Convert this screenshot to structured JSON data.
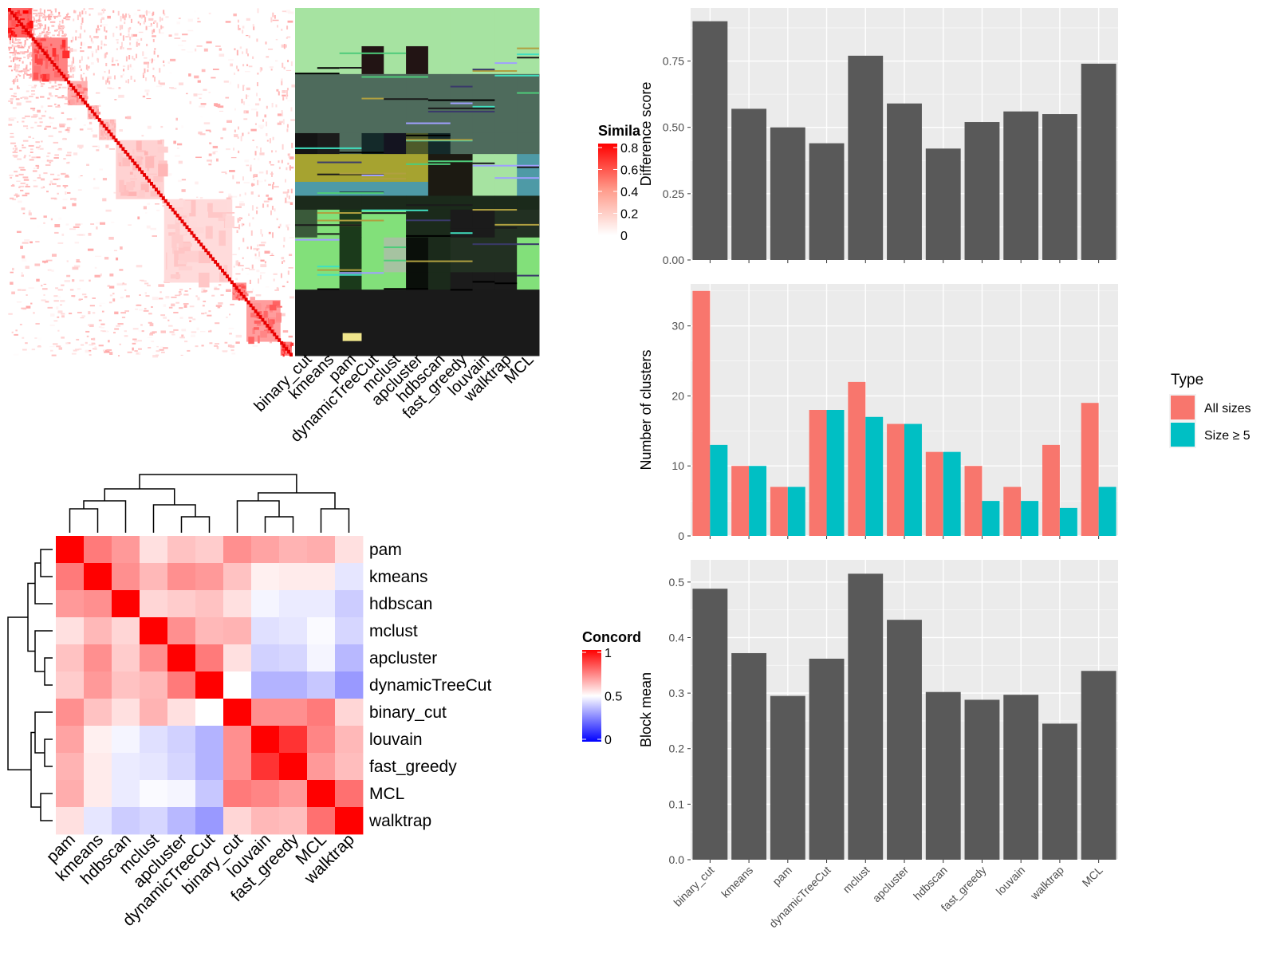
{
  "chart_data": [
    {
      "type": "heatmap",
      "panel": "similarity-heatmap",
      "legend_title": "Simila",
      "legend_ticks": [
        "0.8",
        "0.6",
        "0.4",
        "0.2",
        "0"
      ],
      "annotation_columns": [
        "binary_cut",
        "kmeans",
        "pam",
        "dynamicTreeCut",
        "mclust",
        "apcluster",
        "hdbscan",
        "fast_greedy",
        "louvain",
        "walktrap",
        "MCL"
      ]
    },
    {
      "type": "heatmap",
      "panel": "concordance-heatmap",
      "legend_title": "Concord",
      "legend_ticks": [
        "1",
        "0.5",
        "0"
      ],
      "rows": [
        "pam",
        "kmeans",
        "hdbscan",
        "mclust",
        "apcluster",
        "dynamicTreeCut",
        "binary_cut",
        "louvain",
        "fast_greedy",
        "MCL",
        "walktrap"
      ],
      "columns": [
        "pam",
        "kmeans",
        "hdbscan",
        "mclust",
        "apcluster",
        "dynamicTreeCut",
        "binary_cut",
        "louvain",
        "fast_greedy",
        "MCL",
        "walktrap"
      ],
      "values": [
        [
          1.0,
          0.76,
          0.7,
          0.56,
          0.62,
          0.6,
          0.72,
          0.68,
          0.65,
          0.66,
          0.56
        ],
        [
          0.76,
          1.0,
          0.72,
          0.64,
          0.72,
          0.7,
          0.62,
          0.53,
          0.54,
          0.54,
          0.45
        ],
        [
          0.7,
          0.72,
          1.0,
          0.58,
          0.6,
          0.62,
          0.56,
          0.48,
          0.46,
          0.46,
          0.4
        ],
        [
          0.56,
          0.64,
          0.58,
          1.0,
          0.72,
          0.64,
          0.65,
          0.44,
          0.45,
          0.49,
          0.42
        ],
        [
          0.62,
          0.72,
          0.6,
          0.72,
          1.0,
          0.76,
          0.56,
          0.41,
          0.42,
          0.48,
          0.36
        ],
        [
          0.6,
          0.7,
          0.62,
          0.64,
          0.76,
          1.0,
          0.5,
          0.35,
          0.35,
          0.39,
          0.3
        ],
        [
          0.72,
          0.62,
          0.56,
          0.65,
          0.56,
          0.5,
          1.0,
          0.72,
          0.72,
          0.76,
          0.58
        ],
        [
          0.68,
          0.53,
          0.48,
          0.44,
          0.41,
          0.35,
          0.72,
          1.0,
          0.9,
          0.74,
          0.64
        ],
        [
          0.65,
          0.54,
          0.46,
          0.45,
          0.42,
          0.35,
          0.72,
          0.9,
          1.0,
          0.7,
          0.63
        ],
        [
          0.66,
          0.54,
          0.46,
          0.49,
          0.48,
          0.39,
          0.76,
          0.74,
          0.7,
          1.0,
          0.78
        ],
        [
          0.56,
          0.45,
          0.4,
          0.42,
          0.36,
          0.3,
          0.58,
          0.64,
          0.63,
          0.78,
          1.0
        ]
      ]
    },
    {
      "type": "bar",
      "panel": "difference-score",
      "ylabel": "Difference score",
      "xlabel": "",
      "categories": [
        "binary_cut",
        "kmeans",
        "pam",
        "dynamicTreeCut",
        "mclust",
        "apcluster",
        "hdbscan",
        "fast_greedy",
        "louvain",
        "walktrap",
        "MCL"
      ],
      "values": [
        0.9,
        0.57,
        0.5,
        0.44,
        0.77,
        0.59,
        0.42,
        0.52,
        0.56,
        0.55,
        0.74
      ],
      "ylim": [
        0,
        0.95
      ],
      "yticks": [
        "0.00",
        "0.25",
        "0.50",
        "0.75"
      ],
      "color": "#595959"
    },
    {
      "type": "bar",
      "panel": "number-of-clusters",
      "ylabel": "Number of clusters",
      "xlabel": "",
      "categories": [
        "binary_cut",
        "kmeans",
        "pam",
        "dynamicTreeCut",
        "mclust",
        "apcluster",
        "hdbscan",
        "fast_greedy",
        "louvain",
        "walktrap",
        "MCL"
      ],
      "series": [
        {
          "name": "All sizes",
          "color": "#F8766D",
          "values": [
            35,
            10,
            7,
            18,
            22,
            16,
            12,
            10,
            7,
            13,
            19
          ]
        },
        {
          "name": "Size ≥ 5",
          "color": "#00BFC4",
          "values": [
            13,
            10,
            7,
            18,
            17,
            16,
            12,
            5,
            5,
            4,
            7
          ]
        }
      ],
      "ylim": [
        0,
        36
      ],
      "yticks": [
        "0",
        "10",
        "20",
        "30"
      ],
      "legend_title": "Type",
      "legend_position": "right"
    },
    {
      "type": "bar",
      "panel": "block-mean",
      "ylabel": "Block mean",
      "xlabel": "",
      "categories": [
        "binary_cut",
        "kmeans",
        "pam",
        "dynamicTreeCut",
        "mclust",
        "apcluster",
        "hdbscan",
        "fast_greedy",
        "louvain",
        "walktrap",
        "MCL"
      ],
      "values": [
        0.488,
        0.372,
        0.295,
        0.362,
        0.515,
        0.432,
        0.302,
        0.288,
        0.297,
        0.245,
        0.34
      ],
      "ylim": [
        0,
        0.54
      ],
      "yticks": [
        "0.0",
        "0.1",
        "0.2",
        "0.3",
        "0.4",
        "0.5"
      ],
      "color": "#595959"
    }
  ]
}
